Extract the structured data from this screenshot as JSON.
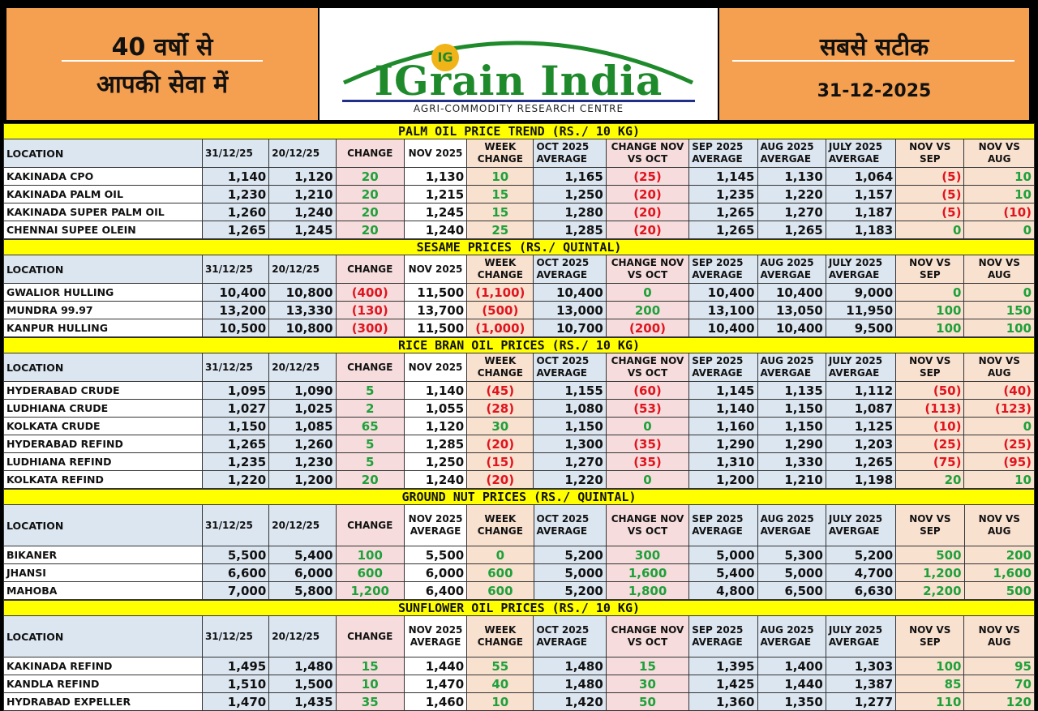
{
  "header": {
    "left_line1": "40 वर्षो से",
    "left_line2": "आपकी सेवा में",
    "logo_name": "IGrain India",
    "logo_sub": "AGRI-COMMODITY RESEARCH CENTRE",
    "logo_coin": "IG",
    "right_line1": "सबसे सटीक",
    "right_date": "31-12-2025"
  },
  "colors": {
    "positive": "#1ea03a",
    "negative": "#e0141e",
    "title_bg": "#ffff00",
    "header_bg": "#f5a051"
  },
  "sections": [
    {
      "title": "PALM OIL PRICE TREND (RS./ 10 KG)",
      "headers": [
        "LOCATION",
        "31/12/25",
        "20/12/25",
        "CHANGE",
        "NOV 2025",
        "WEEK CHANGE",
        "OCT 2025 AVERAGE",
        "CHANGE NOV VS OCT",
        "SEP 2025 AVERAGE",
        "AUG 2025 AVERGAE",
        "JULY 2025 AVERGAE",
        "NOV VS SEP",
        "NOV VS AUG"
      ],
      "header_height": 34,
      "row_height": 21,
      "rows": [
        [
          "KAKINADA CPO",
          "1,140",
          "1,120",
          "20",
          "1,130",
          "10",
          "1,165",
          "(25)",
          "1,145",
          "1,130",
          "1,064",
          "(5)",
          "10"
        ],
        [
          "KAKINADA PALM OIL",
          "1,230",
          "1,210",
          "20",
          "1,215",
          "15",
          "1,250",
          "(20)",
          "1,235",
          "1,220",
          "1,157",
          "(5)",
          "10"
        ],
        [
          "KAKINADA SUPER PALM OIL",
          "1,260",
          "1,240",
          "20",
          "1,245",
          "15",
          "1,280",
          "(20)",
          "1,265",
          "1,270",
          "1,187",
          "(5)",
          "(10)"
        ],
        [
          "CHENNAI SUPEE OLEIN",
          "1,265",
          "1,245",
          "20",
          "1,240",
          "25",
          "1,285",
          "(20)",
          "1,265",
          "1,265",
          "1,183",
          "0",
          "0"
        ]
      ]
    },
    {
      "title": "SESAME PRICES (RS./ QUINTAL)",
      "headers": [
        "LOCATION",
        "31/12/25",
        "20/12/25",
        "CHANGE",
        "NOV 2025",
        "WEEK CHANGE",
        "OCT 2025 AVERAGE",
        "CHANGE NOV VS OCT",
        "SEP 2025 AVERAGE",
        "AUG 2025 AVERGAE",
        "JULY 2025 AVERGAE",
        "NOV VS SEP",
        "NOV VS AUG"
      ],
      "header_height": 34,
      "row_height": 21,
      "rows": [
        [
          "GWALIOR HULLING",
          "10,400",
          "10,800",
          "(400)",
          "11,500",
          "(1,100)",
          "10,400",
          "0",
          "10,400",
          "10,400",
          "9,000",
          "0",
          "0"
        ],
        [
          "MUNDRA 99.97",
          "13,200",
          "13,330",
          "(130)",
          "13,700",
          "(500)",
          "13,000",
          "200",
          "13,100",
          "13,050",
          "11,950",
          "100",
          "150"
        ],
        [
          "KANPUR HULLING",
          "10,500",
          "10,800",
          "(300)",
          "11,500",
          "(1,000)",
          "10,700",
          "(200)",
          "10,400",
          "10,400",
          "9,500",
          "100",
          "100"
        ]
      ]
    },
    {
      "title": "RICE BRAN OIL PRICES (RS./ 10 KG)",
      "headers": [
        "LOCATION",
        "31/12/25",
        "20/12/25",
        "CHANGE",
        "NOV 2025",
        "WEEK CHANGE",
        "OCT 2025 AVERAGE",
        "CHANGE NOV VS OCT",
        "SEP 2025 AVERAGE",
        "AUG 2025 AVERGAE",
        "JULY 2025 AVERGAE",
        "NOV VS SEP",
        "NOV VS AUG"
      ],
      "header_height": 34,
      "row_height": 21,
      "rows": [
        [
          "HYDERABAD CRUDE",
          "1,095",
          "1,090",
          "5",
          "1,140",
          "(45)",
          "1,155",
          "(60)",
          "1,145",
          "1,135",
          "1,112",
          "(50)",
          "(40)"
        ],
        [
          "LUDHIANA CRUDE",
          "1,027",
          "1,025",
          "2",
          "1,055",
          "(28)",
          "1,080",
          "(53)",
          "1,140",
          "1,150",
          "1,087",
          "(113)",
          "(123)"
        ],
        [
          "KOLKATA CRUDE",
          "1,150",
          "1,085",
          "65",
          "1,120",
          "30",
          "1,150",
          "0",
          "1,160",
          "1,150",
          "1,125",
          "(10)",
          "0"
        ],
        [
          "HYDERABAD REFIND",
          "1,265",
          "1,260",
          "5",
          "1,285",
          "(20)",
          "1,300",
          "(35)",
          "1,290",
          "1,290",
          "1,203",
          "(25)",
          "(25)"
        ],
        [
          "LUDHIANA REFIND",
          "1,235",
          "1,230",
          "5",
          "1,250",
          "(15)",
          "1,270",
          "(35)",
          "1,310",
          "1,330",
          "1,265",
          "(75)",
          "(95)"
        ],
        [
          "KOLKATA REFIND",
          "1,220",
          "1,200",
          "20",
          "1,240",
          "(20)",
          "1,220",
          "0",
          "1,200",
          "1,210",
          "1,198",
          "20",
          "10"
        ]
      ]
    },
    {
      "title": "GROUND NUT PRICES (RS./ QUINTAL)",
      "headers": [
        "LOCATION",
        "31/12/25",
        "20/12/25",
        "CHANGE",
        "NOV 2025 AVERAGE",
        "WEEK CHANGE",
        "OCT 2025 AVERAGE",
        "CHANGE NOV VS OCT",
        "SEP 2025 AVERAGE",
        "AUG 2025 AVERGAE",
        "JULY 2025 AVERGAE",
        "NOV VS SEP",
        "NOV VS AUG"
      ],
      "header_height": 50,
      "row_height": 21,
      "rows": [
        [
          "BIKANER",
          "5,500",
          "5,400",
          "100",
          "5,500",
          "0",
          "5,200",
          "300",
          "5,000",
          "5,300",
          "5,200",
          "500",
          "200"
        ],
        [
          "JHANSI",
          "6,600",
          "6,000",
          "600",
          "6,000",
          "600",
          "5,000",
          "1,600",
          "5,400",
          "5,000",
          "4,700",
          "1,200",
          "1,600"
        ],
        [
          "MAHOBA",
          "7,000",
          "5,800",
          "1,200",
          "6,400",
          "600",
          "5,200",
          "1,800",
          "4,800",
          "6,500",
          "6,630",
          "2,200",
          "500"
        ]
      ]
    },
    {
      "title": "SUNFLOWER OIL PRICES (RS./ 10 KG)",
      "headers": [
        "LOCATION",
        "31/12/25",
        "20/12/25",
        "CHANGE",
        "NOV 2025 AVERAGE",
        "WEEK CHANGE",
        "OCT 2025 AVERAGE",
        "CHANGE NOV VS OCT",
        "SEP 2025 AVERAGE",
        "AUG 2025 AVERGAE",
        "JULY 2025 AVERGAE",
        "NOV VS SEP",
        "NOV VS AUG"
      ],
      "header_height": 50,
      "row_height": 21,
      "rows": [
        [
          "KAKINADA REFIND",
          "1,495",
          "1,480",
          "15",
          "1,440",
          "55",
          "1,480",
          "15",
          "1,395",
          "1,400",
          "1,303",
          "100",
          "95"
        ],
        [
          "KANDLA REFIND",
          "1,510",
          "1,500",
          "10",
          "1,470",
          "40",
          "1,480",
          "30",
          "1,425",
          "1,440",
          "1,387",
          "85",
          "70"
        ],
        [
          "HYDRABAD EXPELLER",
          "1,470",
          "1,435",
          "35",
          "1,460",
          "10",
          "1,420",
          "50",
          "1,360",
          "1,350",
          "1,277",
          "110",
          "120"
        ]
      ]
    }
  ]
}
